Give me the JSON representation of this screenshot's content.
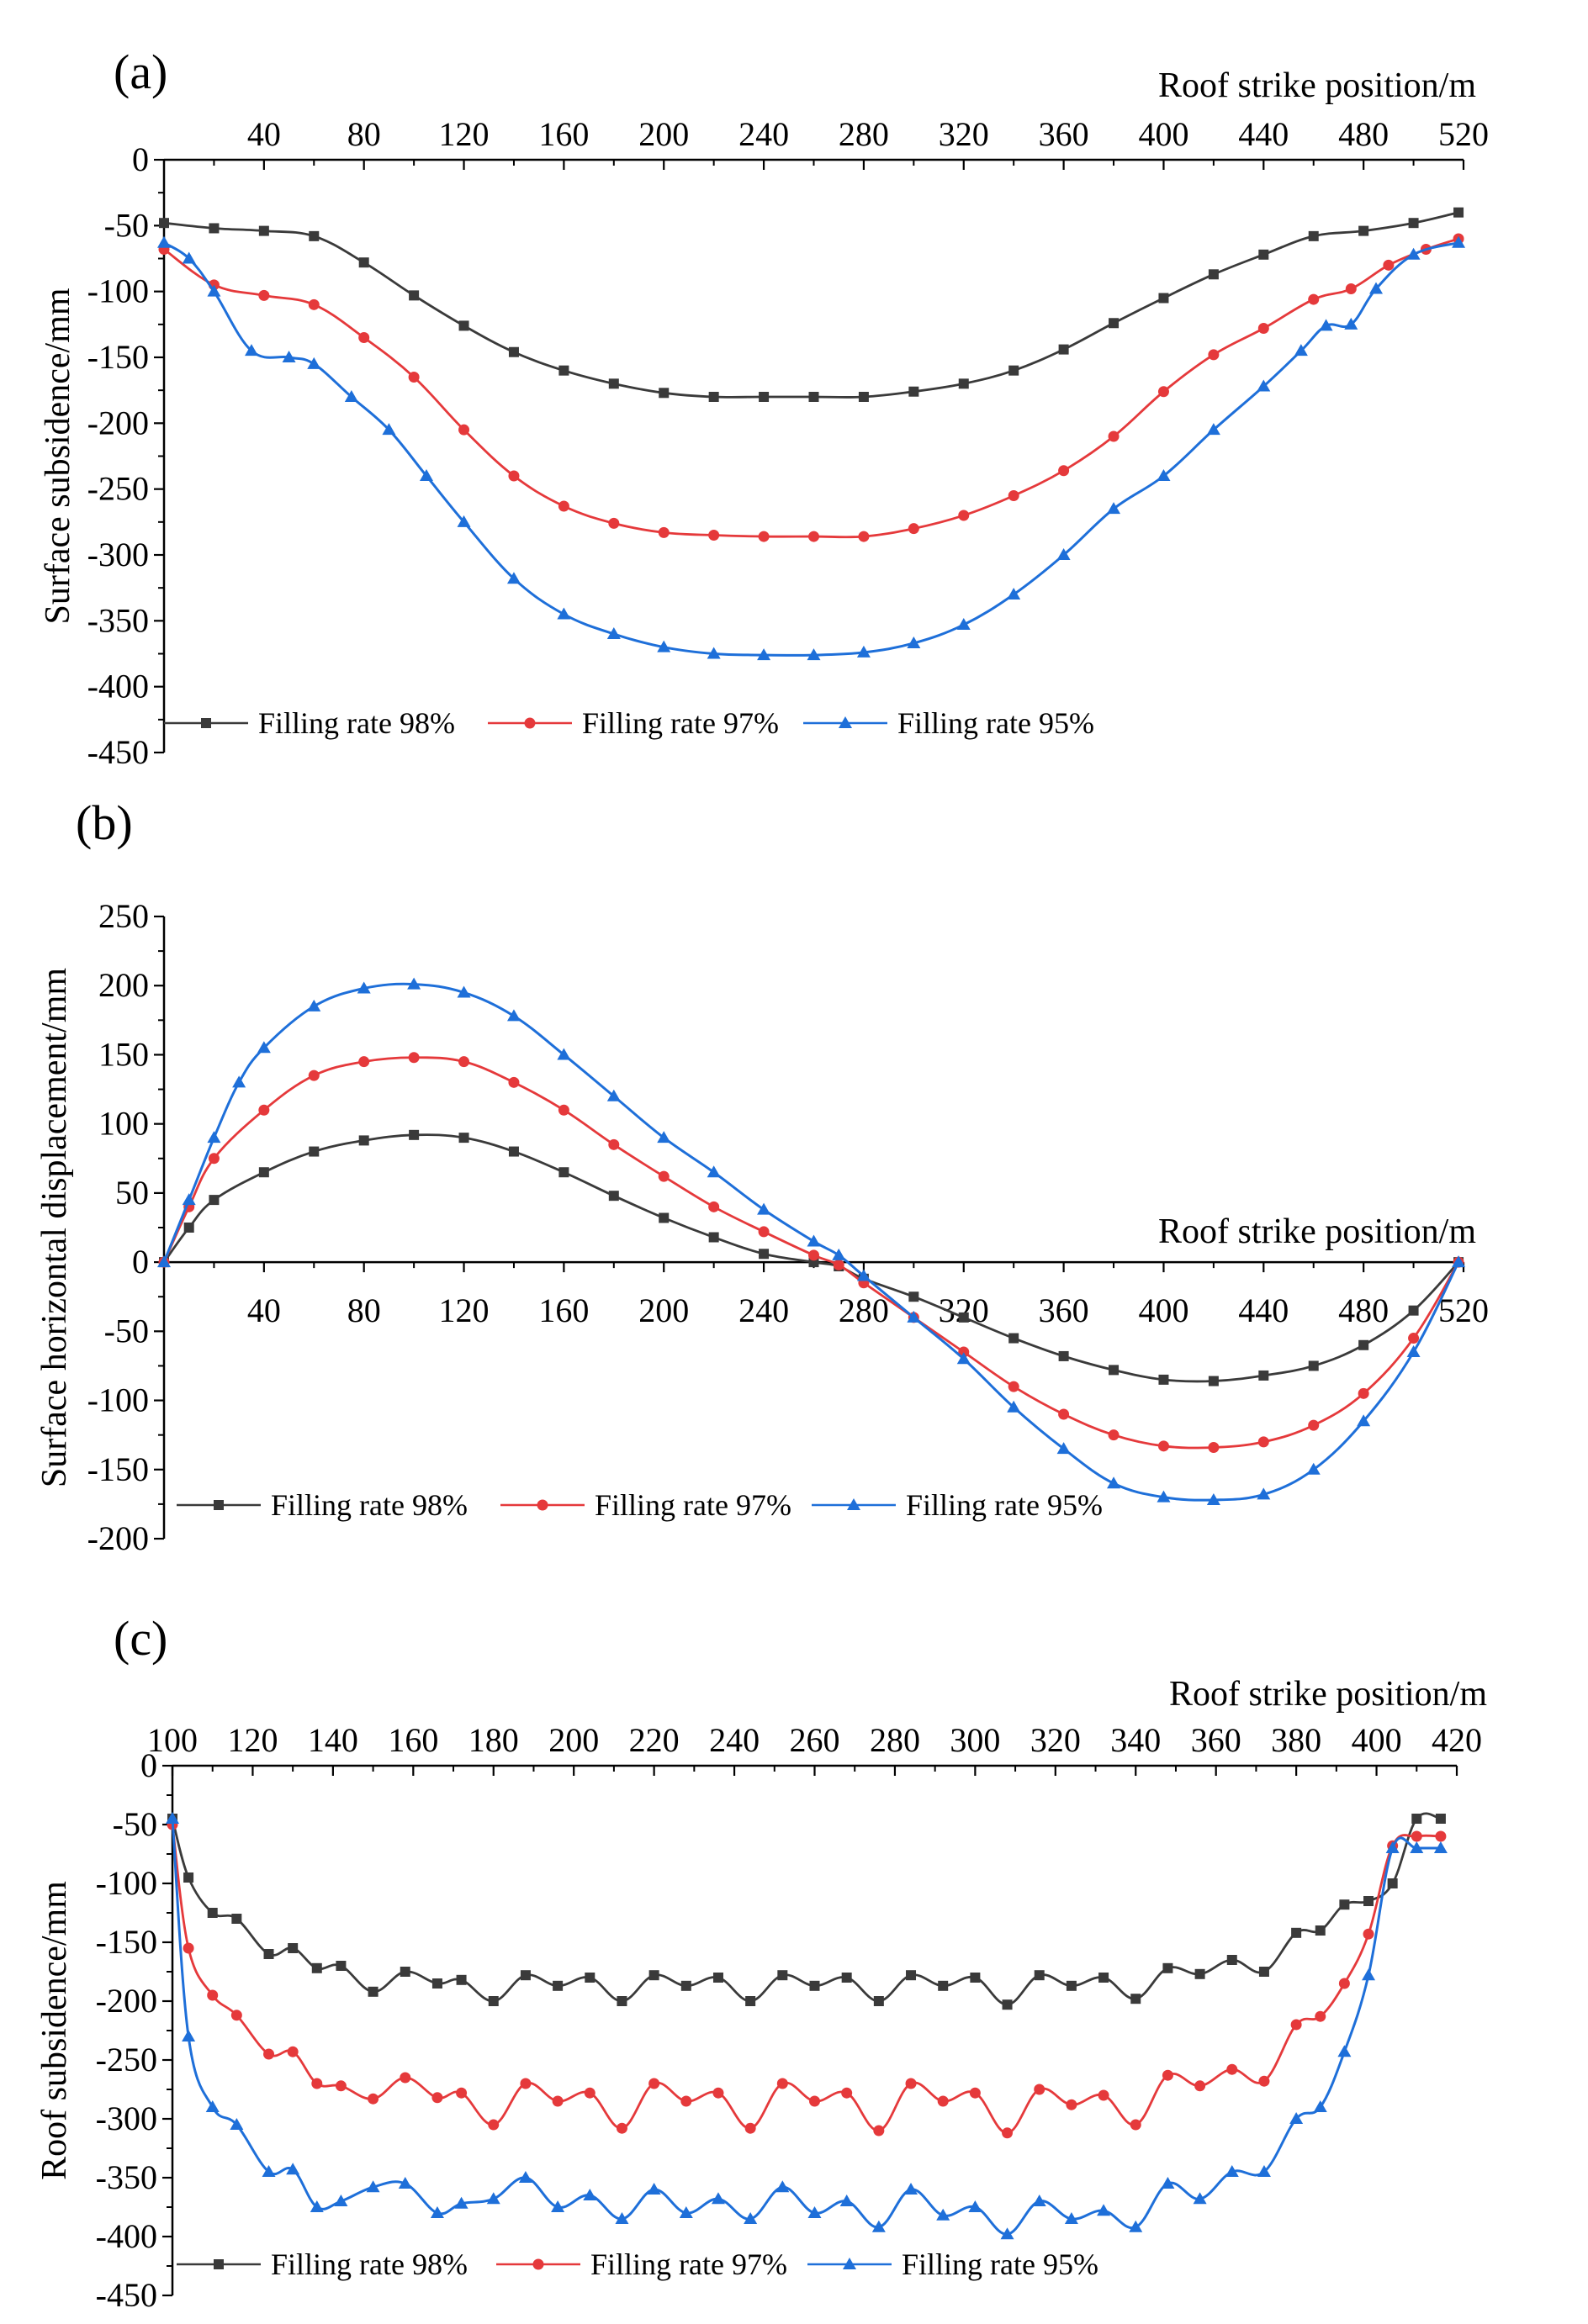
{
  "colors": {
    "s98": "#3a3a3a",
    "s97": "#e5393b",
    "s95": "#1e6fd9",
    "axis": "#000000"
  },
  "chart_data": [
    {
      "type": "line",
      "panel": "(a)",
      "xlabel": "Roof strike position/m",
      "ylabel": "Surface subsidence/mm",
      "xlim": [
        0,
        520
      ],
      "ylim": [
        -450,
        0
      ],
      "xticks": [
        "40",
        "80",
        "120",
        "160",
        "200",
        "240",
        "280",
        "320",
        "360",
        "400",
        "440",
        "480",
        "520"
      ],
      "yticks": [
        "0",
        "-50",
        "-100",
        "-150",
        "-200",
        "-250",
        "-300",
        "-350",
        "-400",
        "-450"
      ],
      "x_axis_at_y": 0,
      "legend_position": "bottom-left",
      "series": [
        {
          "name": "Filling rate 98%",
          "color_key": "s98",
          "marker": "square",
          "x": [
            0,
            20,
            40,
            60,
            80,
            100,
            120,
            140,
            160,
            180,
            200,
            220,
            240,
            260,
            280,
            300,
            320,
            340,
            360,
            380,
            400,
            420,
            440,
            460,
            480,
            500,
            518
          ],
          "y": [
            -48,
            -52,
            -54,
            -58,
            -78,
            -103,
            -126,
            -146,
            -160,
            -170,
            -177,
            -180,
            -180,
            -180,
            -180,
            -176,
            -170,
            -160,
            -144,
            -124,
            -105,
            -87,
            -72,
            -58,
            -54,
            -48,
            -40
          ]
        },
        {
          "name": "Filling rate 97%",
          "color_key": "s97",
          "marker": "circle",
          "x": [
            0,
            20,
            40,
            60,
            80,
            100,
            120,
            140,
            160,
            180,
            200,
            220,
            240,
            260,
            280,
            300,
            320,
            340,
            360,
            380,
            400,
            420,
            440,
            460,
            475,
            490,
            505,
            518
          ],
          "y": [
            -68,
            -95,
            -103,
            -110,
            -135,
            -165,
            -205,
            -240,
            -263,
            -276,
            -283,
            -285,
            -286,
            -286,
            -286,
            -280,
            -270,
            -255,
            -236,
            -210,
            -176,
            -148,
            -128,
            -106,
            -98,
            -80,
            -68,
            -60
          ]
        },
        {
          "name": "Filling rate 95%",
          "color_key": "s95",
          "marker": "triangle",
          "x": [
            0,
            10,
            20,
            35,
            50,
            60,
            75,
            90,
            105,
            120,
            140,
            160,
            180,
            200,
            220,
            240,
            260,
            280,
            300,
            320,
            340,
            360,
            380,
            400,
            420,
            440,
            455,
            465,
            475,
            485,
            500,
            518
          ],
          "y": [
            -63,
            -75,
            -100,
            -145,
            -150,
            -155,
            -180,
            -205,
            -240,
            -275,
            -318,
            -345,
            -360,
            -370,
            -375,
            -376,
            -376,
            -374,
            -367,
            -353,
            -330,
            -300,
            -265,
            -240,
            -205,
            -172,
            -145,
            -126,
            -125,
            -98,
            -72,
            -63
          ]
        }
      ]
    },
    {
      "type": "line",
      "panel": "(b)",
      "xlabel": "Roof strike position/m",
      "ylabel": "Surface horizontal displacement/mm",
      "xlim": [
        0,
        520
      ],
      "ylim": [
        -200,
        250
      ],
      "xticks": [
        "40",
        "80",
        "120",
        "160",
        "200",
        "240",
        "280",
        "320",
        "360",
        "400",
        "440",
        "480",
        "520"
      ],
      "yticks": [
        "250",
        "200",
        "150",
        "100",
        "50",
        "0",
        "-50",
        "-100",
        "-150",
        "-200"
      ],
      "x_axis_at_y": 0,
      "legend_position": "bottom-left",
      "series": [
        {
          "name": "Filling rate 98%",
          "color_key": "s98",
          "marker": "square",
          "x": [
            0,
            10,
            20,
            40,
            60,
            80,
            100,
            120,
            140,
            160,
            180,
            200,
            220,
            240,
            260,
            270,
            280,
            300,
            320,
            340,
            360,
            380,
            400,
            420,
            440,
            460,
            480,
            500,
            518
          ],
          "y": [
            0,
            25,
            45,
            65,
            80,
            88,
            92,
            90,
            80,
            65,
            48,
            32,
            18,
            6,
            0,
            -3,
            -12,
            -25,
            -40,
            -55,
            -68,
            -78,
            -85,
            -86,
            -82,
            -75,
            -60,
            -35,
            0
          ]
        },
        {
          "name": "Filling rate 97%",
          "color_key": "s97",
          "marker": "circle",
          "x": [
            0,
            10,
            20,
            40,
            60,
            80,
            100,
            120,
            140,
            160,
            180,
            200,
            220,
            240,
            260,
            270,
            280,
            300,
            320,
            340,
            360,
            380,
            400,
            420,
            440,
            460,
            480,
            500,
            518
          ],
          "y": [
            0,
            40,
            75,
            110,
            135,
            145,
            148,
            145,
            130,
            110,
            85,
            62,
            40,
            22,
            5,
            -2,
            -15,
            -40,
            -65,
            -90,
            -110,
            -125,
            -133,
            -134,
            -130,
            -118,
            -95,
            -55,
            0
          ]
        },
        {
          "name": "Filling rate 95%",
          "color_key": "s95",
          "marker": "triangle",
          "x": [
            0,
            10,
            20,
            30,
            40,
            60,
            80,
            100,
            120,
            140,
            160,
            180,
            200,
            220,
            240,
            260,
            270,
            280,
            300,
            320,
            340,
            360,
            380,
            400,
            420,
            440,
            460,
            480,
            500,
            518
          ],
          "y": [
            0,
            45,
            90,
            130,
            155,
            185,
            198,
            201,
            195,
            178,
            150,
            120,
            90,
            65,
            38,
            15,
            5,
            -10,
            -40,
            -70,
            -105,
            -135,
            -160,
            -170,
            -172,
            -168,
            -150,
            -115,
            -65,
            0
          ]
        }
      ]
    },
    {
      "type": "line",
      "panel": "(c)",
      "xlabel": "Roof strike position/m",
      "ylabel": "Roof subsidence/mm",
      "xlim": [
        100,
        420
      ],
      "ylim": [
        -450,
        0
      ],
      "xticks": [
        "100",
        "120",
        "140",
        "160",
        "180",
        "200",
        "220",
        "240",
        "260",
        "280",
        "300",
        "320",
        "340",
        "360",
        "380",
        "400",
        "420"
      ],
      "yticks": [
        "0",
        "-50",
        "-100",
        "-150",
        "-200",
        "-250",
        "-300",
        "-350",
        "-400",
        "-450"
      ],
      "x_axis_at_y": 0,
      "legend_position": "bottom-left",
      "series": [
        {
          "name": "Filling rate 98%",
          "color_key": "s98",
          "marker": "square",
          "x": [
            100,
            104,
            110,
            116,
            124,
            130,
            136,
            142,
            150,
            158,
            166,
            172,
            180,
            188,
            196,
            204,
            212,
            220,
            228,
            236,
            244,
            252,
            260,
            268,
            276,
            284,
            292,
            300,
            308,
            316,
            324,
            332,
            340,
            348,
            356,
            364,
            372,
            380,
            386,
            392,
            398,
            404,
            410,
            416
          ],
          "y": [
            -45,
            -95,
            -125,
            -130,
            -160,
            -155,
            -172,
            -170,
            -192,
            -175,
            -185,
            -182,
            -200,
            -178,
            -187,
            -180,
            -200,
            -178,
            -187,
            -180,
            -200,
            -178,
            -187,
            -180,
            -200,
            -178,
            -187,
            -180,
            -203,
            -178,
            -187,
            -180,
            -198,
            -172,
            -177,
            -165,
            -175,
            -142,
            -140,
            -118,
            -115,
            -100,
            -45,
            -45
          ]
        },
        {
          "name": "Filling rate 97%",
          "color_key": "s97",
          "marker": "circle",
          "x": [
            100,
            104,
            110,
            116,
            124,
            130,
            136,
            142,
            150,
            158,
            166,
            172,
            180,
            188,
            196,
            204,
            212,
            220,
            228,
            236,
            244,
            252,
            260,
            268,
            276,
            284,
            292,
            300,
            308,
            316,
            324,
            332,
            340,
            348,
            356,
            364,
            372,
            380,
            386,
            392,
            398,
            404,
            410,
            416
          ],
          "y": [
            -50,
            -155,
            -195,
            -212,
            -245,
            -243,
            -270,
            -272,
            -283,
            -265,
            -282,
            -278,
            -305,
            -270,
            -285,
            -278,
            -308,
            -270,
            -285,
            -278,
            -308,
            -270,
            -285,
            -278,
            -310,
            -270,
            -285,
            -278,
            -312,
            -275,
            -288,
            -280,
            -305,
            -263,
            -272,
            -258,
            -268,
            -220,
            -213,
            -185,
            -143,
            -68,
            -60,
            -60
          ]
        },
        {
          "name": "Filling rate 95%",
          "color_key": "s95",
          "marker": "triangle",
          "x": [
            100,
            104,
            110,
            116,
            124,
            130,
            136,
            142,
            150,
            158,
            166,
            172,
            180,
            188,
            196,
            204,
            212,
            220,
            228,
            236,
            244,
            252,
            260,
            268,
            276,
            284,
            292,
            300,
            308,
            316,
            324,
            332,
            340,
            348,
            356,
            364,
            372,
            380,
            386,
            392,
            398,
            404,
            410,
            416
          ],
          "y": [
            -45,
            -230,
            -290,
            -305,
            -345,
            -343,
            -375,
            -370,
            -358,
            -355,
            -380,
            -372,
            -368,
            -350,
            -375,
            -365,
            -385,
            -360,
            -380,
            -368,
            -385,
            -358,
            -380,
            -370,
            -392,
            -360,
            -382,
            -375,
            -398,
            -370,
            -385,
            -378,
            -392,
            -355,
            -368,
            -345,
            -345,
            -300,
            -290,
            -243,
            -178,
            -70,
            -70,
            -70
          ]
        }
      ]
    }
  ]
}
